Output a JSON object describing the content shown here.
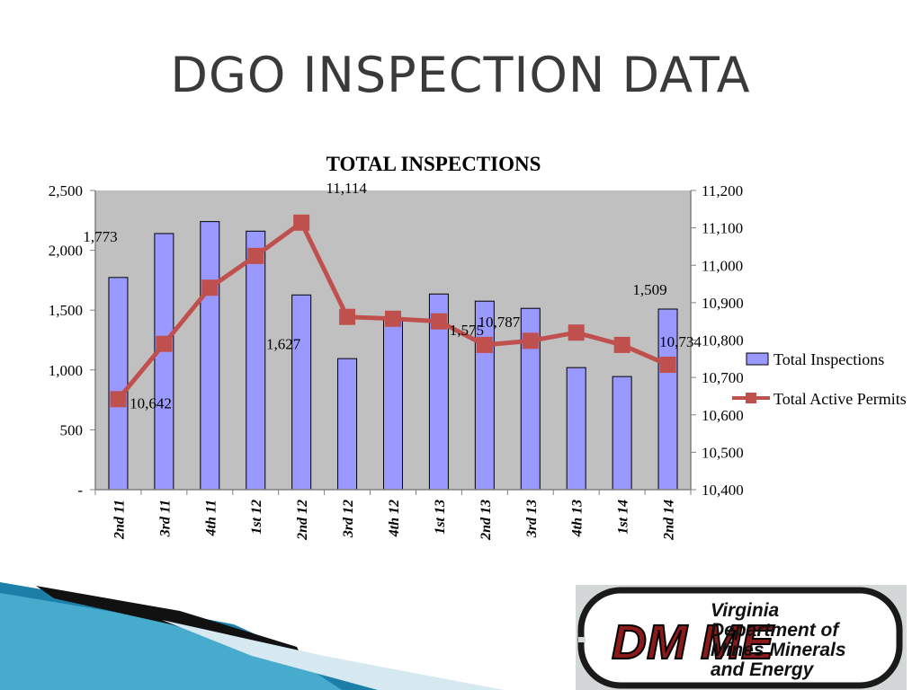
{
  "slide": {
    "title": "DGO INSPECTION DATA"
  },
  "chart_data": {
    "type": "bar",
    "title": "TOTAL INSPECTIONS",
    "categories": [
      "2nd 11",
      "3rd 11",
      "4th 11",
      "1st 12",
      "2nd 12",
      "3rd 12",
      "4th 12",
      "1st 13",
      "2nd 13",
      "3rd 13",
      "4th 13",
      "1st 14",
      "2nd 14"
    ],
    "series": [
      {
        "name": "Total Inspections",
        "type": "bar",
        "axis": "left",
        "color": "#9999ff",
        "values": [
          1773,
          2140,
          2240,
          2160,
          1627,
          1095,
          1430,
          1635,
          1575,
          1515,
          1020,
          945,
          1509
        ]
      },
      {
        "name": "Total Active Permits",
        "type": "line",
        "axis": "right",
        "color": "#c0504d",
        "values": [
          10642,
          10790,
          10940,
          11025,
          11114,
          10862,
          10857,
          10850,
          10787,
          10798,
          10820,
          10787,
          10734
        ]
      }
    ],
    "y_left": {
      "range": [
        0,
        2500
      ],
      "ticks": [
        0,
        500,
        1000,
        1500,
        2000,
        2500
      ],
      "tick_labels": [
        "-",
        "500",
        "1,000",
        "1,500",
        "2,000",
        "2,500"
      ]
    },
    "y_right": {
      "range": [
        10400,
        11200
      ],
      "ticks": [
        10400,
        10500,
        10600,
        10700,
        10800,
        10900,
        11000,
        11100,
        11200
      ],
      "tick_labels": [
        "10,400",
        "10,500",
        "10,600",
        "10,700",
        "10,800",
        "10,900",
        "11,000",
        "11,100",
        "11,200"
      ]
    },
    "data_labels": {
      "bars": {
        "0": "1,773",
        "4": "1,627",
        "8": "1,575",
        "12": "1,509"
      },
      "line": {
        "0": "10,642",
        "4": "11,114",
        "8": "10,787",
        "12": "10,734"
      }
    },
    "legend_position": "right",
    "plot_background": "#c0c0c0",
    "grid": false
  },
  "logo": {
    "letters": "DM ME",
    "line1": "Virginia",
    "line2": "Department of",
    "line3": "Mines Minerals",
    "line4": "and Energy"
  }
}
